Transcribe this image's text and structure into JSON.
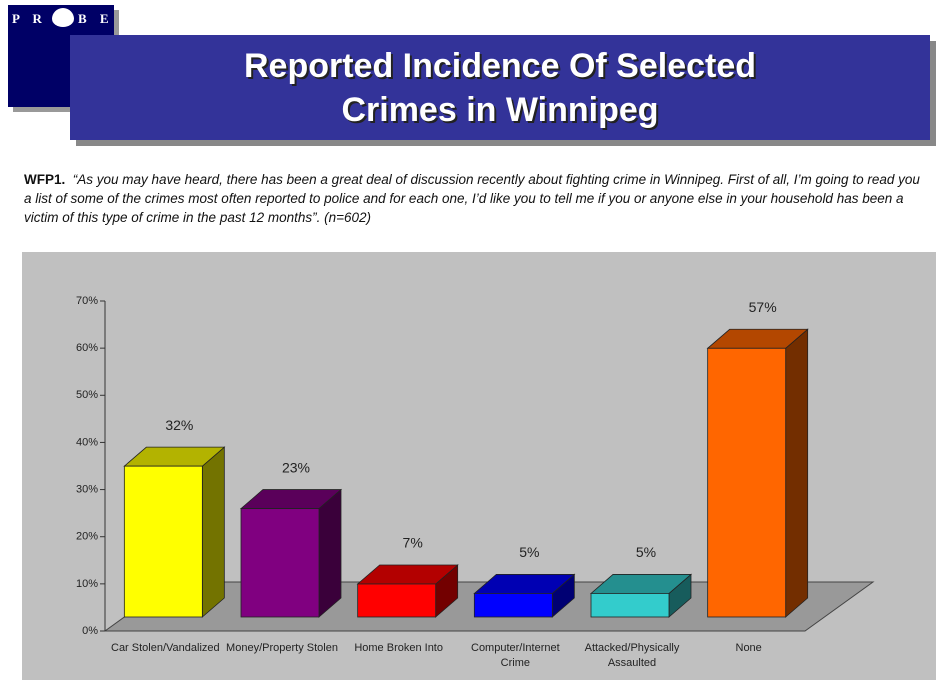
{
  "logo": {
    "left": "P R",
    "right": "B E"
  },
  "question": {
    "code": "WFP1.",
    "text": "“As you may have heard, there has been a great deal of discussion recently about fighting crime in Winnipeg.  First of all, I’m going to read you a list of some of the crimes most often reported to police and for each one, I’d like you to tell me if you or anyone else in your household has been a victim of this type of crime in the past 12 months”.  (n=602)"
  },
  "chart_data": {
    "type": "bar3d",
    "title": "Reported Incidence Of Selected Crimes in Winnipeg",
    "categories": [
      "Car Stolen/Vandalized",
      "Money/Property Stolen",
      "Home Broken Into",
      "Computer/Internet Crime",
      "Attacked/Physically Assaulted",
      "None"
    ],
    "values": [
      32,
      23,
      7,
      5,
      5,
      57
    ],
    "value_labels": [
      "32%",
      "23%",
      "7%",
      "5%",
      "5%",
      "57%"
    ],
    "colors": [
      "#ffff00",
      "#800080",
      "#ff0000",
      "#0000ff",
      "#33cccc",
      "#ff6600"
    ],
    "ylim": [
      0,
      70
    ],
    "yticks": [
      {
        "value": 0,
        "label": "0%"
      },
      {
        "value": 10,
        "label": "10%"
      },
      {
        "value": 20,
        "label": "20%"
      },
      {
        "value": 30,
        "label": "30%"
      },
      {
        "value": 40,
        "label": "40%"
      },
      {
        "value": 50,
        "label": "50%"
      },
      {
        "value": 60,
        "label": "60%"
      },
      {
        "value": 70,
        "label": "70%"
      }
    ]
  }
}
